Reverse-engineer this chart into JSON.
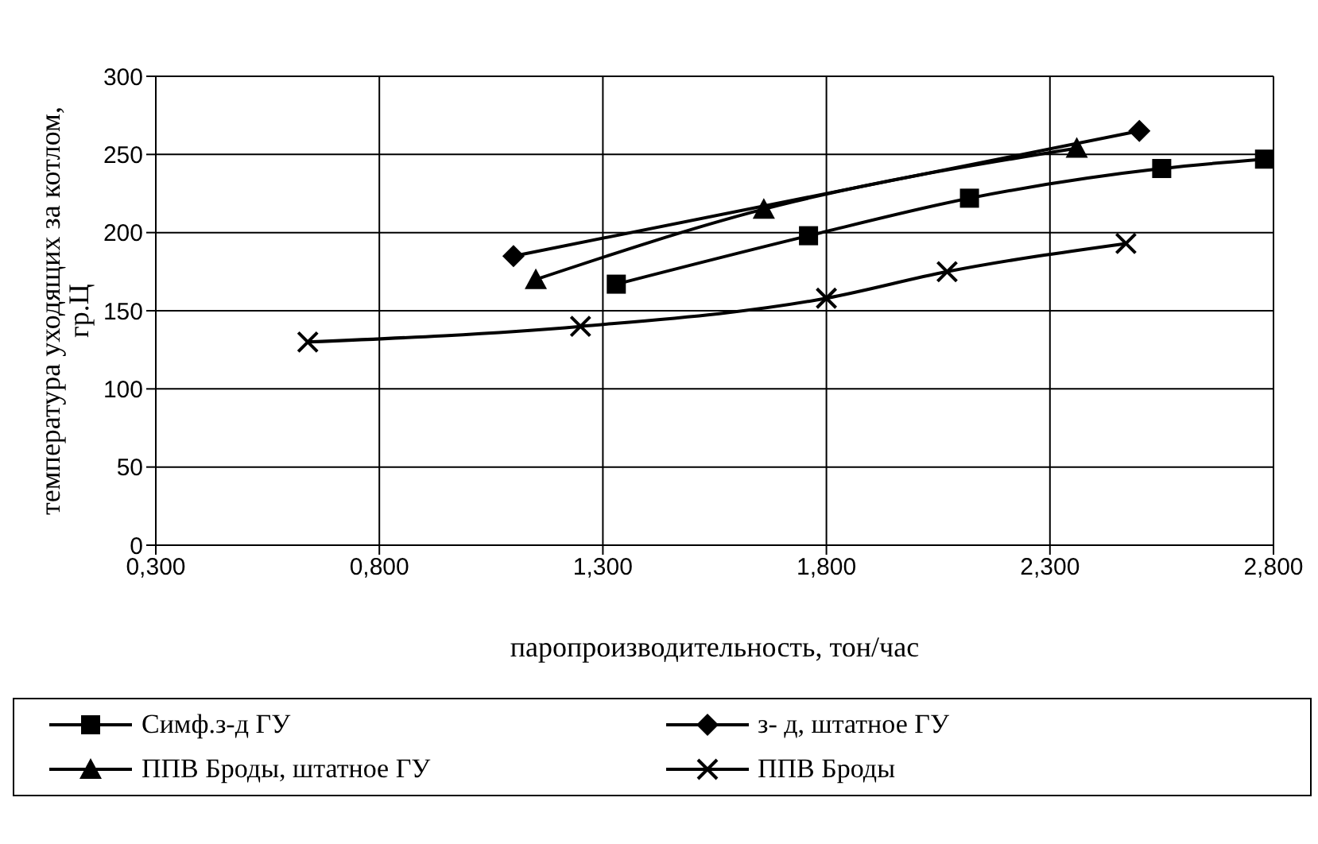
{
  "chart_data": {
    "type": "line",
    "xlabel": "паропроизводительность, тон/час",
    "ylabel": "температура уходящих за котлом, гр.Ц",
    "xlim": [
      0.3,
      2.8
    ],
    "xticks": [
      {
        "value": 0.3,
        "label": "0,300"
      },
      {
        "value": 0.8,
        "label": "0,800"
      },
      {
        "value": 1.3,
        "label": "1,300"
      },
      {
        "value": 1.8,
        "label": "1,800"
      },
      {
        "value": 2.3,
        "label": "2,300"
      },
      {
        "value": 2.8,
        "label": "2,800"
      }
    ],
    "ylim": [
      0,
      300
    ],
    "yticks": [
      0,
      50,
      100,
      150,
      200,
      250,
      300
    ],
    "grid": true,
    "legend": "bottom",
    "line_style": "solid",
    "series": [
      {
        "name": "Симф.з-д ГУ",
        "color": "#000000",
        "marker": "square",
        "x": [
          1.33,
          1.76,
          2.12,
          2.55,
          2.78
        ],
        "values": [
          167,
          198,
          222,
          241,
          247
        ]
      },
      {
        "name": "з- д, штатное ГУ",
        "color": "#000000",
        "marker": "diamond",
        "x": [
          1.1,
          2.5
        ],
        "values": [
          185,
          265
        ]
      },
      {
        "name": "ППВ Броды, штатное ГУ",
        "color": "#000000",
        "marker": "triangle",
        "x": [
          1.15,
          1.66,
          2.36
        ],
        "values": [
          170,
          215,
          254
        ]
      },
      {
        "name": "ППВ Броды",
        "color": "#000000",
        "marker": "cross",
        "x": [
          0.64,
          1.25,
          1.8,
          2.07,
          2.47
        ],
        "values": [
          130,
          140,
          158,
          175,
          193
        ]
      }
    ]
  }
}
